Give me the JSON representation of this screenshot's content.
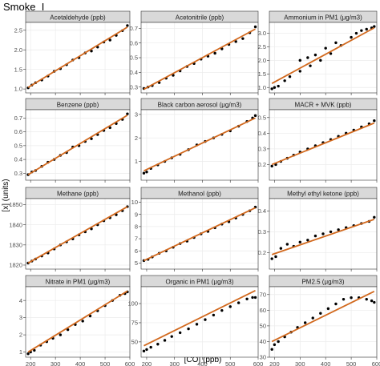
{
  "figure": {
    "title": "Smoke_I",
    "xlabel": "[CO] (ppb)",
    "ylabel": "[x] (units)",
    "trend_color": "#d2691e",
    "point_color": "#000000",
    "strip_color": "#d9d9d9",
    "panel_bg": "#ffffff",
    "grid_color": "#ebebeb"
  },
  "chart_data": [
    {
      "type": "scatter",
      "title": "Acetaldehyde (ppb)",
      "xlim": [
        180,
        600
      ],
      "ylim": [
        0.9,
        2.7
      ],
      "xticks": [
        200,
        300,
        400,
        500,
        600
      ],
      "yticks": [
        1.0,
        1.5,
        2.0,
        2.5
      ],
      "ytick_labels": [
        "1.0",
        "1.5",
        "2.0",
        "2.5"
      ],
      "trend": [
        [
          190,
          1.04
        ],
        [
          590,
          2.58
        ]
      ],
      "x": [
        190,
        205,
        220,
        245,
        270,
        295,
        320,
        345,
        370,
        395,
        420,
        445,
        470,
        495,
        520,
        545,
        570,
        590
      ],
      "y": [
        1.03,
        1.1,
        1.16,
        1.23,
        1.33,
        1.45,
        1.52,
        1.62,
        1.74,
        1.8,
        1.92,
        1.97,
        2.07,
        2.2,
        2.25,
        2.37,
        2.49,
        2.62
      ]
    },
    {
      "type": "scatter",
      "title": "Acetonitrile (ppb)",
      "xlim": [
        180,
        600
      ],
      "ylim": [
        0.26,
        0.74
      ],
      "xticks": [
        200,
        300,
        400,
        500,
        600
      ],
      "yticks": [
        0.3,
        0.4,
        0.5,
        0.6,
        0.7
      ],
      "ytick_labels": [
        "0.3",
        "0.4",
        "0.5",
        "0.6",
        "0.7"
      ],
      "trend": [
        [
          190,
          0.285
        ],
        [
          590,
          0.695
        ]
      ],
      "x": [
        190,
        205,
        220,
        245,
        270,
        295,
        320,
        345,
        370,
        395,
        420,
        445,
        470,
        495,
        520,
        545,
        570,
        590
      ],
      "y": [
        0.29,
        0.3,
        0.31,
        0.33,
        0.36,
        0.38,
        0.41,
        0.44,
        0.46,
        0.49,
        0.51,
        0.53,
        0.56,
        0.59,
        0.61,
        0.63,
        0.67,
        0.71
      ]
    },
    {
      "type": "scatter",
      "title": "Ammonium in PM1 (μg/m3)",
      "xlim": [
        180,
        600
      ],
      "ylim": [
        0.8,
        3.4
      ],
      "xticks": [
        200,
        300,
        400,
        500,
        600
      ],
      "yticks": [
        1.0,
        1.5,
        2.0,
        2.5,
        3.0
      ],
      "ytick_labels": [
        "1.0",
        "1.5",
        "2.0",
        "2.5",
        "3.0"
      ],
      "trend": [
        [
          190,
          1.15
        ],
        [
          590,
          3.2
        ]
      ],
      "x": [
        190,
        200,
        215,
        240,
        260,
        300,
        340,
        380,
        420,
        460,
        500,
        520,
        540,
        560,
        580,
        590,
        300,
        330,
        360,
        400,
        440
      ],
      "y": [
        0.95,
        1.0,
        1.05,
        1.25,
        1.4,
        1.6,
        1.8,
        2.0,
        2.25,
        2.55,
        2.85,
        3.0,
        3.1,
        3.15,
        3.2,
        3.25,
        2.0,
        2.1,
        2.2,
        2.45,
        2.65
      ]
    },
    {
      "type": "scatter",
      "title": "Benzene (ppb)",
      "xlim": [
        180,
        600
      ],
      "ylim": [
        0.25,
        0.76
      ],
      "xticks": [
        200,
        300,
        400,
        500,
        600
      ],
      "yticks": [
        0.3,
        0.4,
        0.5,
        0.6,
        0.7
      ],
      "ytick_labels": [
        "0.3",
        "0.4",
        "0.5",
        "0.6",
        "0.7"
      ],
      "trend": [
        [
          190,
          0.29
        ],
        [
          590,
          0.72
        ]
      ],
      "x": [
        190,
        205,
        220,
        245,
        270,
        295,
        320,
        345,
        370,
        395,
        420,
        445,
        470,
        495,
        520,
        545,
        570,
        590
      ],
      "y": [
        0.29,
        0.31,
        0.32,
        0.35,
        0.38,
        0.4,
        0.43,
        0.45,
        0.49,
        0.5,
        0.53,
        0.55,
        0.58,
        0.61,
        0.63,
        0.66,
        0.69,
        0.73
      ]
    },
    {
      "type": "scatter",
      "title": "Black carbon aerosol (μg/m3)",
      "xlim": [
        180,
        600
      ],
      "ylim": [
        0.2,
        3.2
      ],
      "xticks": [
        200,
        300,
        400,
        500,
        600
      ],
      "yticks": [
        1,
        2,
        3
      ],
      "ytick_labels": [
        "1",
        "2",
        "3"
      ],
      "trend": [
        [
          190,
          0.6
        ],
        [
          590,
          2.85
        ]
      ],
      "x": [
        190,
        200,
        215,
        240,
        265,
        290,
        320,
        350,
        380,
        410,
        440,
        470,
        500,
        530,
        560,
        580,
        590
      ],
      "y": [
        0.5,
        0.55,
        0.7,
        0.85,
        1.0,
        1.15,
        1.3,
        1.5,
        1.7,
        1.85,
        2.0,
        2.15,
        2.3,
        2.5,
        2.7,
        2.85,
        2.95
      ]
    },
    {
      "type": "scatter",
      "title": "MACR + MVK (ppb)",
      "xlim": [
        180,
        600
      ],
      "ylim": [
        0.1,
        0.55
      ],
      "xticks": [
        200,
        300,
        400,
        500,
        600
      ],
      "yticks": [
        0.2,
        0.3,
        0.4,
        0.5
      ],
      "ytick_labels": [
        "0.2",
        "0.3",
        "0.4",
        "0.5"
      ],
      "trend": [
        [
          190,
          0.2
        ],
        [
          590,
          0.465
        ]
      ],
      "x": [
        190,
        205,
        225,
        250,
        275,
        300,
        330,
        360,
        390,
        420,
        450,
        480,
        510,
        540,
        570,
        590
      ],
      "y": [
        0.19,
        0.2,
        0.22,
        0.24,
        0.26,
        0.28,
        0.3,
        0.32,
        0.34,
        0.36,
        0.38,
        0.4,
        0.42,
        0.44,
        0.46,
        0.48
      ]
    },
    {
      "type": "scatter",
      "title": "Methane (ppb)",
      "xlim": [
        180,
        600
      ],
      "ylim": [
        1818,
        1853
      ],
      "xticks": [
        200,
        300,
        400,
        500,
        600
      ],
      "yticks": [
        1820,
        1830,
        1840,
        1850
      ],
      "ytick_labels": [
        "1820",
        "1830",
        "1840",
        "1850"
      ],
      "trend": [
        [
          190,
          1821
        ],
        [
          590,
          1849
        ]
      ],
      "x": [
        190,
        205,
        220,
        245,
        270,
        295,
        320,
        345,
        370,
        395,
        420,
        445,
        470,
        495,
        520,
        545,
        570,
        590
      ],
      "y": [
        1821,
        1822,
        1823,
        1824.5,
        1826,
        1828,
        1830,
        1831.5,
        1833,
        1835,
        1836.5,
        1838,
        1840,
        1842,
        1843.5,
        1845,
        1847,
        1849
      ]
    },
    {
      "type": "scatter",
      "title": "Methanol (ppb)",
      "xlim": [
        180,
        600
      ],
      "ylim": [
        4.5,
        10.3
      ],
      "xticks": [
        200,
        300,
        400,
        500,
        600
      ],
      "yticks": [
        5,
        6,
        7,
        8,
        9,
        10
      ],
      "ytick_labels": [
        "5",
        "6",
        "7",
        "8",
        "9",
        "10"
      ],
      "trend": [
        [
          190,
          5.2
        ],
        [
          590,
          9.55
        ]
      ],
      "x": [
        190,
        205,
        220,
        245,
        270,
        295,
        320,
        345,
        370,
        395,
        420,
        445,
        470,
        495,
        520,
        545,
        570,
        590
      ],
      "y": [
        5.2,
        5.3,
        5.5,
        5.8,
        6.0,
        6.3,
        6.6,
        6.8,
        7.1,
        7.4,
        7.6,
        7.9,
        8.2,
        8.4,
        8.7,
        9.0,
        9.3,
        9.6
      ]
    },
    {
      "type": "scatter",
      "title": "Methyl ethyl ketone (ppb)",
      "xlim": [
        180,
        600
      ],
      "ylim": [
        0.12,
        0.46
      ],
      "xticks": [
        200,
        300,
        400,
        500,
        600
      ],
      "yticks": [
        0.2,
        0.3,
        0.4
      ],
      "ytick_labels": [
        "0.2",
        "0.3",
        "0.4"
      ],
      "trend": [
        [
          190,
          0.19
        ],
        [
          590,
          0.36
        ]
      ],
      "x": [
        190,
        205,
        225,
        250,
        275,
        300,
        330,
        360,
        390,
        420,
        450,
        480,
        510,
        540,
        570,
        590
      ],
      "y": [
        0.17,
        0.18,
        0.22,
        0.24,
        0.23,
        0.25,
        0.26,
        0.28,
        0.29,
        0.3,
        0.31,
        0.32,
        0.33,
        0.34,
        0.35,
        0.37
      ]
    },
    {
      "type": "scatter",
      "title": "Nitrate in PM1 (μg/m3)",
      "xlim": [
        180,
        600
      ],
      "ylim": [
        0.7,
        4.8
      ],
      "xticks": [
        200,
        300,
        400,
        500,
        600
      ],
      "yticks": [
        1,
        2,
        3,
        4
      ],
      "ytick_labels": [
        "1",
        "2",
        "3",
        "4"
      ],
      "trend": [
        [
          190,
          1.0
        ],
        [
          590,
          4.55
        ]
      ],
      "x": [
        190,
        200,
        215,
        240,
        265,
        290,
        320,
        350,
        380,
        410,
        440,
        470,
        500,
        530,
        560,
        580,
        590
      ],
      "y": [
        0.9,
        1.0,
        1.1,
        1.4,
        1.6,
        1.8,
        2.0,
        2.3,
        2.6,
        2.8,
        3.1,
        3.4,
        3.7,
        4.0,
        4.3,
        4.4,
        4.5
      ]
    },
    {
      "type": "scatter",
      "title": "Organic in PM1 (μg/m3)",
      "xlim": [
        180,
        600
      ],
      "ylim": [
        30,
        122
      ],
      "xticks": [
        200,
        300,
        400,
        500,
        600
      ],
      "yticks": [
        50,
        75,
        100
      ],
      "ytick_labels": [
        "50",
        "75",
        "100"
      ],
      "trend": [
        [
          190,
          45
        ],
        [
          590,
          117
        ]
      ],
      "x": [
        190,
        200,
        215,
        240,
        265,
        290,
        320,
        350,
        380,
        410,
        440,
        470,
        500,
        530,
        560,
        580,
        590
      ],
      "y": [
        38,
        40,
        43,
        47,
        52,
        57,
        62,
        67,
        73,
        79,
        85,
        91,
        96,
        101,
        106,
        108,
        108
      ]
    },
    {
      "type": "scatter",
      "title": "PM2.5 (μg/m3)",
      "xlim": [
        180,
        600
      ],
      "ylim": [
        30,
        75
      ],
      "xticks": [
        200,
        300,
        400,
        500,
        600
      ],
      "yticks": [
        30,
        40,
        50,
        60,
        70
      ],
      "ytick_labels": [
        "30",
        "40",
        "50",
        "60",
        "70"
      ],
      "trend": [
        [
          190,
          40
        ],
        [
          590,
          72
        ]
      ],
      "x": [
        190,
        200,
        215,
        240,
        265,
        290,
        320,
        350,
        380,
        410,
        440,
        470,
        500,
        530,
        560,
        580,
        590
      ],
      "y": [
        35,
        38,
        40,
        43,
        46,
        49,
        52,
        55,
        58,
        61,
        64,
        67,
        68,
        68,
        67,
        66,
        65
      ]
    }
  ]
}
